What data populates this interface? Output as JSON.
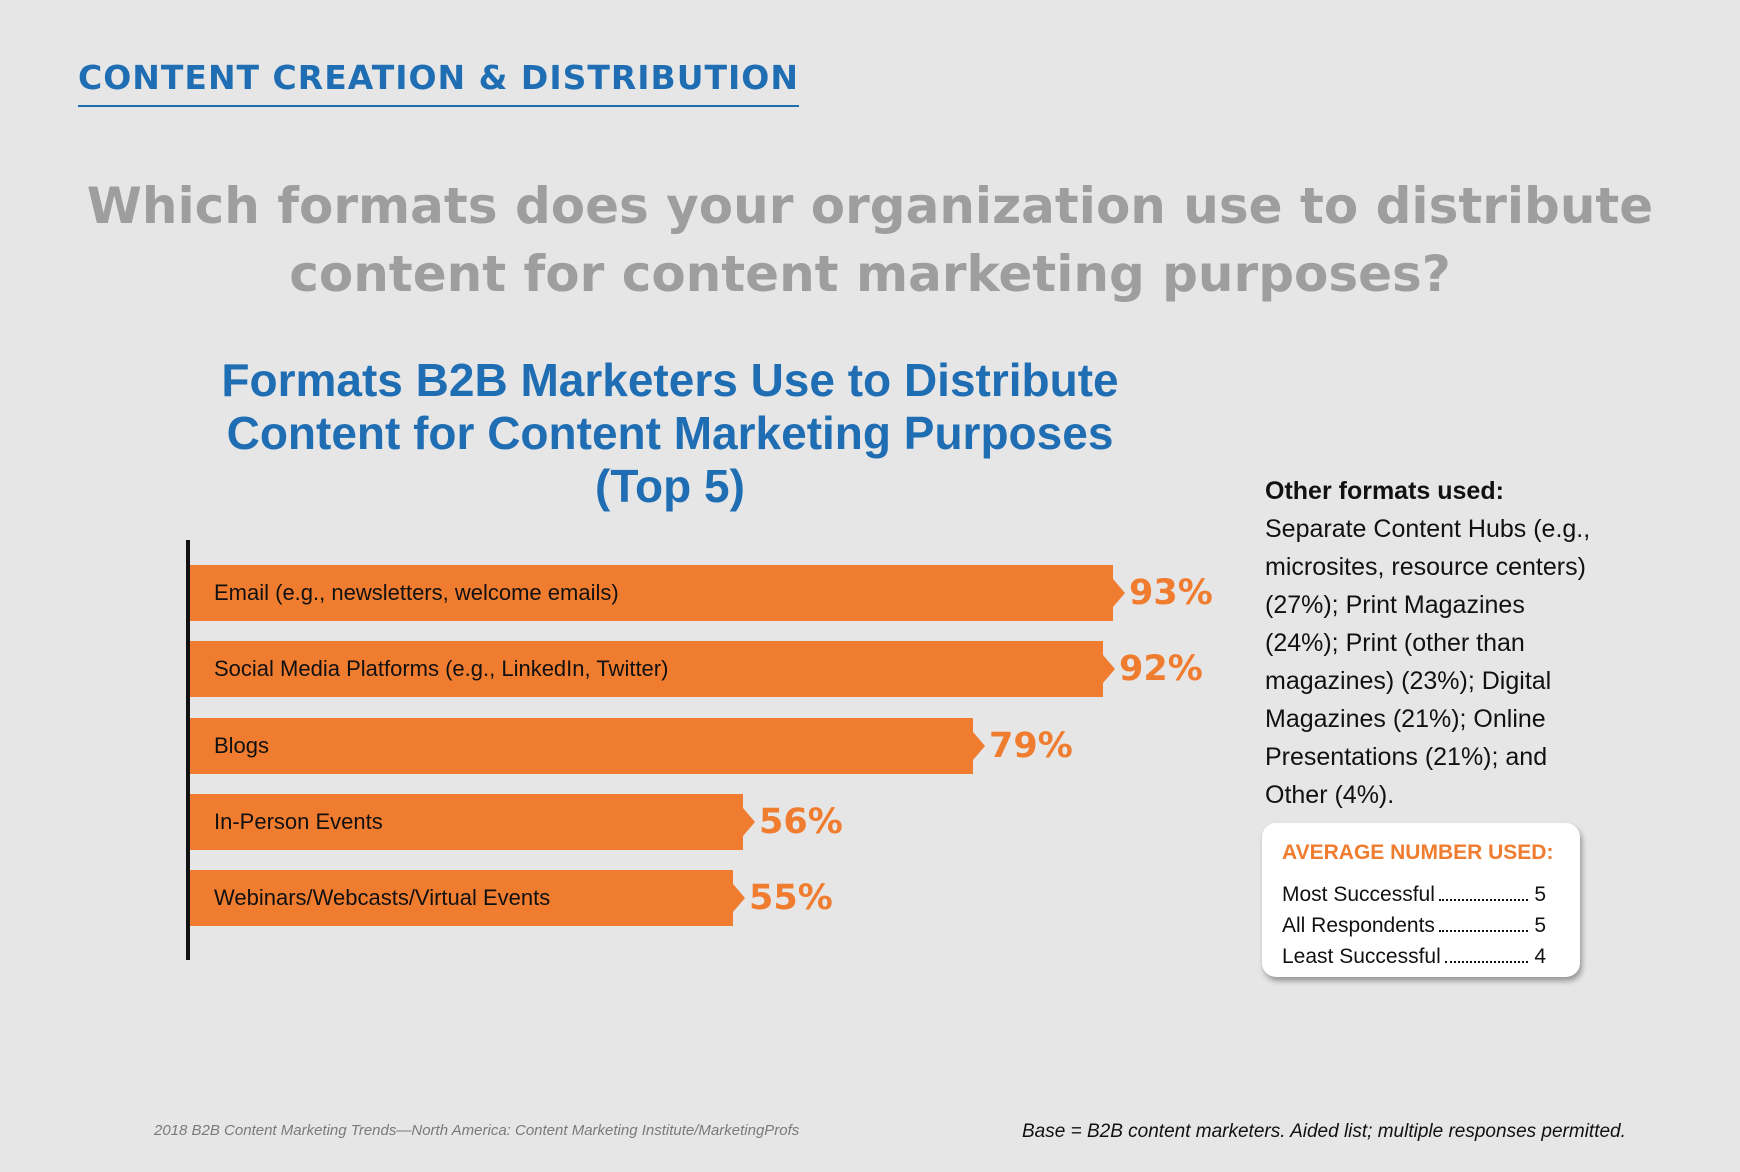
{
  "section_header": "CONTENT CREATION & DISTRIBUTION",
  "question": {
    "line1": "Which formats does your organization use to distribute",
    "line2": "content for content marketing purposes?"
  },
  "colors": {
    "accent_blue": "#1f6db3",
    "bar_orange": "#f07c30",
    "question_gray": "#9e9e9e",
    "background": "#e6e6e6"
  },
  "chart_data": {
    "type": "bar",
    "orientation": "horizontal",
    "title_lines": [
      "Formats B2B Marketers Use to Distribute",
      "Content for Content Marketing Purposes",
      "(Top 5)"
    ],
    "categories": [
      "Email (e.g., newsletters, welcome emails)",
      "Social Media Platforms (e.g., LinkedIn, Twitter)",
      "Blogs",
      "In-Person Events",
      "Webinars/Webcasts/Virtual Events"
    ],
    "values": [
      93,
      92,
      79,
      56,
      55
    ],
    "value_labels": [
      "93%",
      "92%",
      "79%",
      "56%",
      "55%"
    ],
    "unit": "%",
    "xlim": [
      0,
      100
    ],
    "grid": false
  },
  "other_formats": {
    "heading": "Other formats used:",
    "text": "Separate Content Hubs (e.g., microsites, resource centers) (27%); Print Magazines (24%); Print (other than magazines) (23%); Digital Magazines (21%); Online Presentations (21%); and Other (4%)."
  },
  "average_box": {
    "heading": "AVERAGE NUMBER USED:",
    "rows": [
      {
        "label": "Most Successful",
        "value": "5"
      },
      {
        "label": "All Respondents",
        "value": "5"
      },
      {
        "label": "Least Successful",
        "value": "4"
      }
    ]
  },
  "source": "2018 B2B Content Marketing Trends—North America: Content Marketing Institute/MarketingProfs",
  "base_note": "Base = B2B content marketers. Aided list; multiple responses permitted."
}
